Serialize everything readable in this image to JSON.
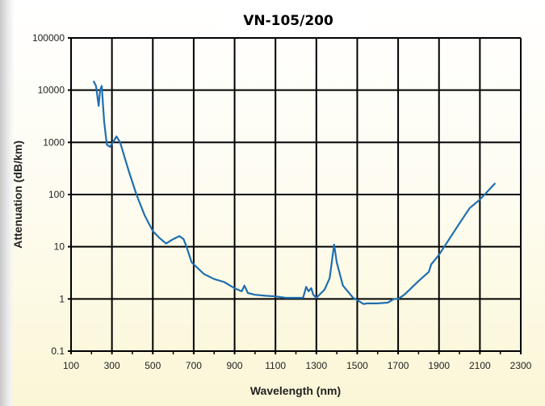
{
  "chart_data": {
    "type": "line",
    "title": "VN-105/200",
    "xlabel": "Wavelength (nm)",
    "ylabel": "Attenuation (dB/km)",
    "xlim": [
      100,
      2300
    ],
    "ylim": [
      0.1,
      100000
    ],
    "yscale": "log",
    "grid": true,
    "x_ticks": [
      "100",
      "300",
      "500",
      "700",
      "900",
      "1100",
      "1300",
      "1500",
      "1700",
      "1900",
      "2100",
      "2300"
    ],
    "y_ticks": [
      "100000",
      "10000",
      "1000",
      "100",
      "10",
      "1",
      "0.1"
    ],
    "series": [
      {
        "name": "VN-105/200",
        "color": "#1f6fb0",
        "x": [
          210,
          222,
          235,
          242,
          250,
          262,
          275,
          290,
          305,
          322,
          340,
          380,
          420,
          460,
          500,
          530,
          565,
          600,
          630,
          650,
          665,
          690,
          750,
          800,
          850,
          900,
          935,
          948,
          965,
          1000,
          1050,
          1100,
          1150,
          1200,
          1235,
          1250,
          1262,
          1275,
          1285,
          1300,
          1340,
          1365,
          1380,
          1387,
          1400,
          1430,
          1480,
          1500,
          1530,
          1550,
          1600,
          1650,
          1680,
          1700,
          1730,
          1800,
          1850,
          1862,
          1900,
          1950,
          2000,
          2050,
          2100,
          2175
        ],
        "y": [
          15000,
          12000,
          5000,
          10000,
          12000,
          2500,
          900,
          820,
          1000,
          1300,
          1000,
          300,
          100,
          40,
          20,
          15,
          11.5,
          14,
          16,
          14,
          10,
          5,
          3,
          2.4,
          2.1,
          1.6,
          1.4,
          1.8,
          1.3,
          1.2,
          1.15,
          1.12,
          1.05,
          1.05,
          1.05,
          1.7,
          1.4,
          1.6,
          1.2,
          1.05,
          1.5,
          2.5,
          7,
          11,
          5,
          1.8,
          1.05,
          0.95,
          0.8,
          0.82,
          0.82,
          0.85,
          1.0,
          1.0,
          1.2,
          2.2,
          3.3,
          4.6,
          7,
          14,
          28,
          55,
          80,
          165
        ]
      }
    ]
  }
}
